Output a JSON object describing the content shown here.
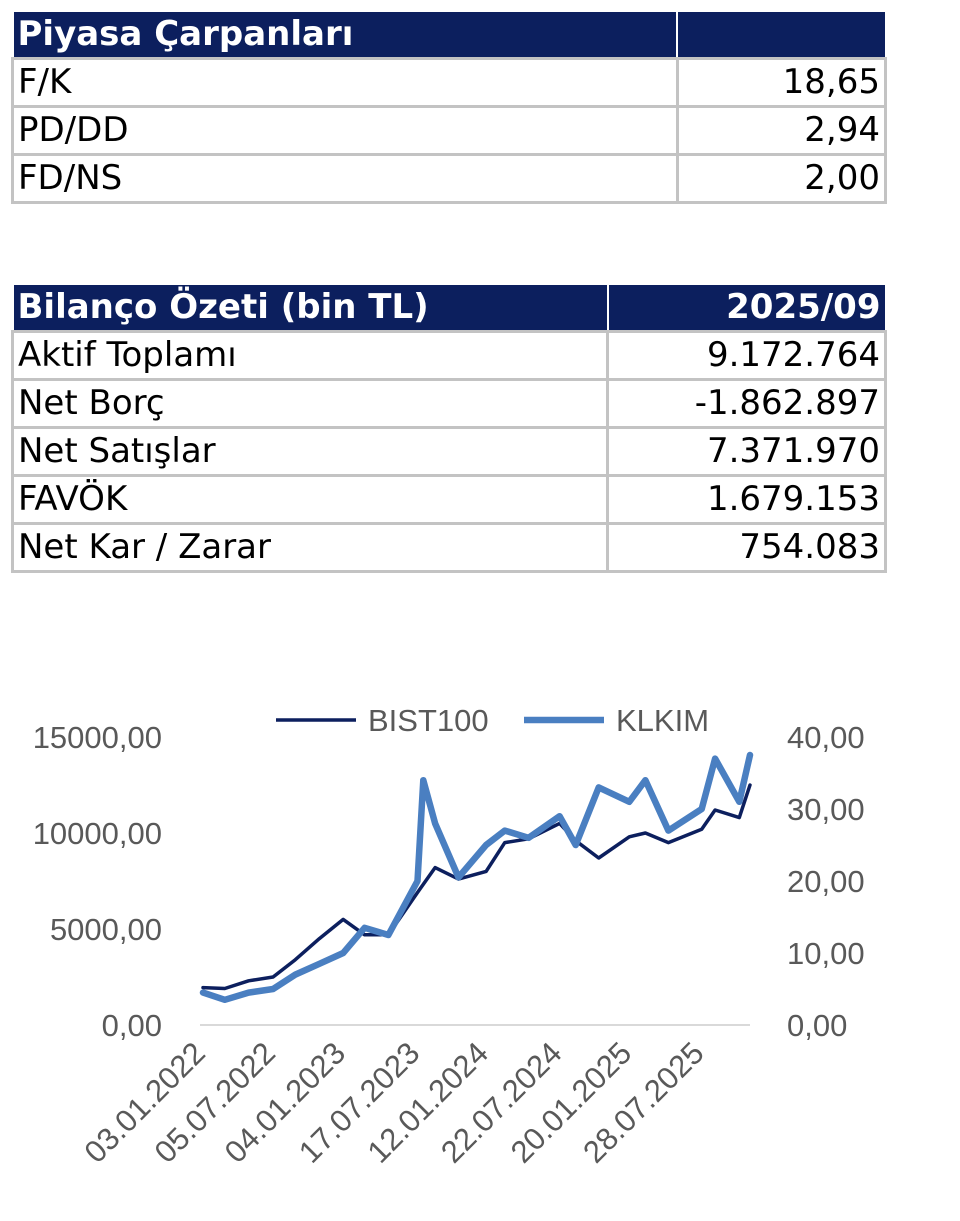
{
  "multiples": {
    "title": "Piyasa Çarpanları",
    "rows": [
      {
        "label": "F/K",
        "value": "18,65"
      },
      {
        "label": "PD/DD",
        "value": "2,94"
      },
      {
        "label": "FD/NS",
        "value": "2,00"
      }
    ]
  },
  "balance": {
    "title": "Bilanço Özeti (bin TL)",
    "period": "2025/09",
    "rows": [
      {
        "label": "Aktif Toplamı",
        "value": "9.172.764"
      },
      {
        "label": "Net Borç",
        "value": "-1.862.897"
      },
      {
        "label": "Net Satışlar",
        "value": "7.371.970"
      },
      {
        "label": "FAVÖK",
        "value": "1.679.153"
      },
      {
        "label": "Net Kar / Zarar",
        "value": "754.083"
      }
    ]
  },
  "colors": {
    "header_bg": "#0c1f5e",
    "bist100": "#0c1f5e",
    "klkim": "#4a7fc1"
  },
  "chart_data": {
    "type": "line",
    "title": "",
    "legend_position": "top",
    "grid": false,
    "x_tick_labels": [
      "03.01.2022",
      "05.07.2022",
      "04.01.2023",
      "17.07.2023",
      "12.01.2024",
      "22.07.2024",
      "20.01.2025",
      "28.07.2025"
    ],
    "y_left": {
      "ticks": [
        "15000,00",
        "10000,00",
        "5000,00",
        "0,00"
      ],
      "ylim": [
        0,
        15000
      ]
    },
    "y_right": {
      "ticks": [
        "40,00",
        "30,00",
        "20,00",
        "10,00",
        "0,00"
      ],
      "ylim": [
        0,
        40
      ]
    },
    "series": [
      {
        "name": "BIST100",
        "axis": "left",
        "x": [
          "03.01.2022",
          "01.03.2022",
          "02.05.2022",
          "05.07.2022",
          "01.09.2022",
          "03.11.2022",
          "04.01.2023",
          "01.03.2023",
          "02.05.2023",
          "17.07.2023",
          "01.09.2023",
          "01.11.2023",
          "12.01.2024",
          "01.03.2024",
          "02.05.2024",
          "22.07.2024",
          "02.09.2024",
          "01.11.2024",
          "20.01.2025",
          "03.03.2025",
          "02.05.2025",
          "28.07.2025",
          "01.09.2025",
          "03.11.2025",
          "01.12.2025"
        ],
        "values": [
          1950,
          1900,
          2300,
          2500,
          3400,
          4500,
          5500,
          4700,
          4700,
          6900,
          8200,
          7600,
          8000,
          9500,
          9700,
          10500,
          9600,
          8700,
          9800,
          10000,
          9500,
          10200,
          11200,
          10800,
          12500
        ]
      },
      {
        "name": "KLKIM",
        "axis": "right",
        "x": [
          "03.01.2022",
          "01.03.2022",
          "02.05.2022",
          "05.07.2022",
          "01.09.2022",
          "03.11.2022",
          "04.01.2023",
          "01.03.2023",
          "02.05.2023",
          "17.07.2023",
          "01.08.2023",
          "01.09.2023",
          "01.11.2023",
          "12.01.2024",
          "01.03.2024",
          "02.05.2024",
          "22.07.2024",
          "02.09.2024",
          "01.11.2024",
          "20.01.2025",
          "03.03.2025",
          "02.05.2025",
          "28.07.2025",
          "01.09.2025",
          "03.11.2025",
          "01.12.2025"
        ],
        "values": [
          4.5,
          3.5,
          4.5,
          5.0,
          7.0,
          8.5,
          10.0,
          13.5,
          12.5,
          20.0,
          34.0,
          28.0,
          20.5,
          25.0,
          27.0,
          26.0,
          29.0,
          25.0,
          33.0,
          31.0,
          34.0,
          27.0,
          30.0,
          37.0,
          31.0,
          37.5
        ]
      }
    ]
  }
}
